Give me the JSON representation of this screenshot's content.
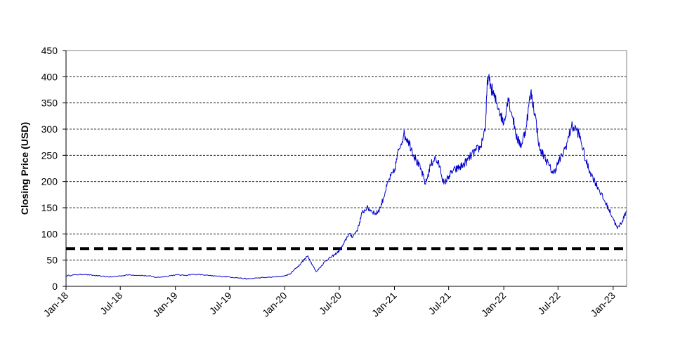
{
  "chart_data": {
    "type": "line",
    "title": "",
    "xlabel": "",
    "ylabel": "Closing Price (USD)",
    "ylim": [
      0,
      450
    ],
    "y_ticks": [
      0,
      50,
      100,
      150,
      200,
      250,
      300,
      350,
      400,
      450
    ],
    "xlim": [
      "2018-01-01",
      "2023-02-15"
    ],
    "x_ticks": [
      {
        "date": "2018-01-01",
        "label": "Jan-18"
      },
      {
        "date": "2018-07-01",
        "label": "Jul-18"
      },
      {
        "date": "2019-01-01",
        "label": "Jan-19"
      },
      {
        "date": "2019-07-01",
        "label": "Jul-19"
      },
      {
        "date": "2020-01-01",
        "label": "Jan-20"
      },
      {
        "date": "2020-07-01",
        "label": "Jul-20"
      },
      {
        "date": "2021-01-01",
        "label": "Jan-21"
      },
      {
        "date": "2021-07-01",
        "label": "Jul-21"
      },
      {
        "date": "2022-01-01",
        "label": "Jan-22"
      },
      {
        "date": "2022-07-01",
        "label": "Jul-22"
      },
      {
        "date": "2023-01-01",
        "label": "Jan-23"
      }
    ],
    "grid": "horizontal dashed",
    "series": [
      {
        "color": "#0000cc",
        "x": [
          "2018-01-01",
          "2018-02-01",
          "2018-03-01",
          "2018-04-01",
          "2018-05-01",
          "2018-06-01",
          "2018-07-01",
          "2018-08-01",
          "2018-09-01",
          "2018-10-01",
          "2018-11-01",
          "2018-12-01",
          "2019-01-01",
          "2019-02-01",
          "2019-03-01",
          "2019-04-01",
          "2019-05-01",
          "2019-06-01",
          "2019-07-01",
          "2019-08-01",
          "2019-09-01",
          "2019-10-01",
          "2019-11-01",
          "2019-12-01",
          "2020-01-01",
          "2020-01-20",
          "2020-02-01",
          "2020-02-15",
          "2020-03-01",
          "2020-03-18",
          "2020-04-01",
          "2020-04-15",
          "2020-05-01",
          "2020-05-15",
          "2020-06-01",
          "2020-06-15",
          "2020-07-01",
          "2020-07-15",
          "2020-08-01",
          "2020-08-15",
          "2020-09-01",
          "2020-09-15",
          "2020-10-01",
          "2020-10-15",
          "2020-11-01",
          "2020-11-15",
          "2020-12-01",
          "2020-12-15",
          "2021-01-01",
          "2021-01-15",
          "2021-02-01",
          "2021-02-15",
          "2021-03-01",
          "2021-03-15",
          "2021-04-01",
          "2021-04-15",
          "2021-05-01",
          "2021-05-15",
          "2021-06-01",
          "2021-06-15",
          "2021-07-01",
          "2021-07-15",
          "2021-08-01",
          "2021-08-15",
          "2021-09-01",
          "2021-09-15",
          "2021-10-01",
          "2021-10-15",
          "2021-11-01",
          "2021-11-08",
          "2021-11-20",
          "2021-12-01",
          "2021-12-15",
          "2022-01-01",
          "2022-01-15",
          "2022-02-01",
          "2022-02-15",
          "2022-03-01",
          "2022-03-15",
          "2022-04-01",
          "2022-04-15",
          "2022-05-01",
          "2022-05-15",
          "2022-06-01",
          "2022-06-15",
          "2022-07-01",
          "2022-07-15",
          "2022-08-01",
          "2022-08-15",
          "2022-09-01",
          "2022-09-15",
          "2022-10-01",
          "2022-10-15",
          "2022-11-01",
          "2022-11-15",
          "2022-12-01",
          "2022-12-15",
          "2023-01-01",
          "2023-01-15",
          "2023-02-01",
          "2023-02-15"
        ],
        "y": [
          20,
          22,
          23,
          21,
          19,
          18,
          20,
          22,
          21,
          20,
          17,
          19,
          22,
          21,
          23,
          22,
          20,
          19,
          18,
          16,
          14,
          16,
          17,
          18,
          20,
          24,
          32,
          38,
          48,
          58,
          42,
          28,
          38,
          48,
          55,
          60,
          68,
          80,
          100,
          95,
          110,
          140,
          150,
          145,
          138,
          150,
          180,
          205,
          220,
          260,
          290,
          280,
          260,
          240,
          220,
          195,
          230,
          245,
          230,
          195,
          210,
          220,
          225,
          230,
          240,
          250,
          260,
          265,
          305,
          400,
          380,
          360,
          340,
          310,
          360,
          320,
          280,
          270,
          300,
          370,
          330,
          260,
          250,
          230,
          215,
          235,
          250,
          275,
          305,
          300,
          280,
          240,
          220,
          200,
          185,
          165,
          150,
          130,
          110,
          125,
          145
        ]
      }
    ],
    "reference_line": {
      "y": 72,
      "style": "dashed",
      "color": "#000000"
    }
  }
}
